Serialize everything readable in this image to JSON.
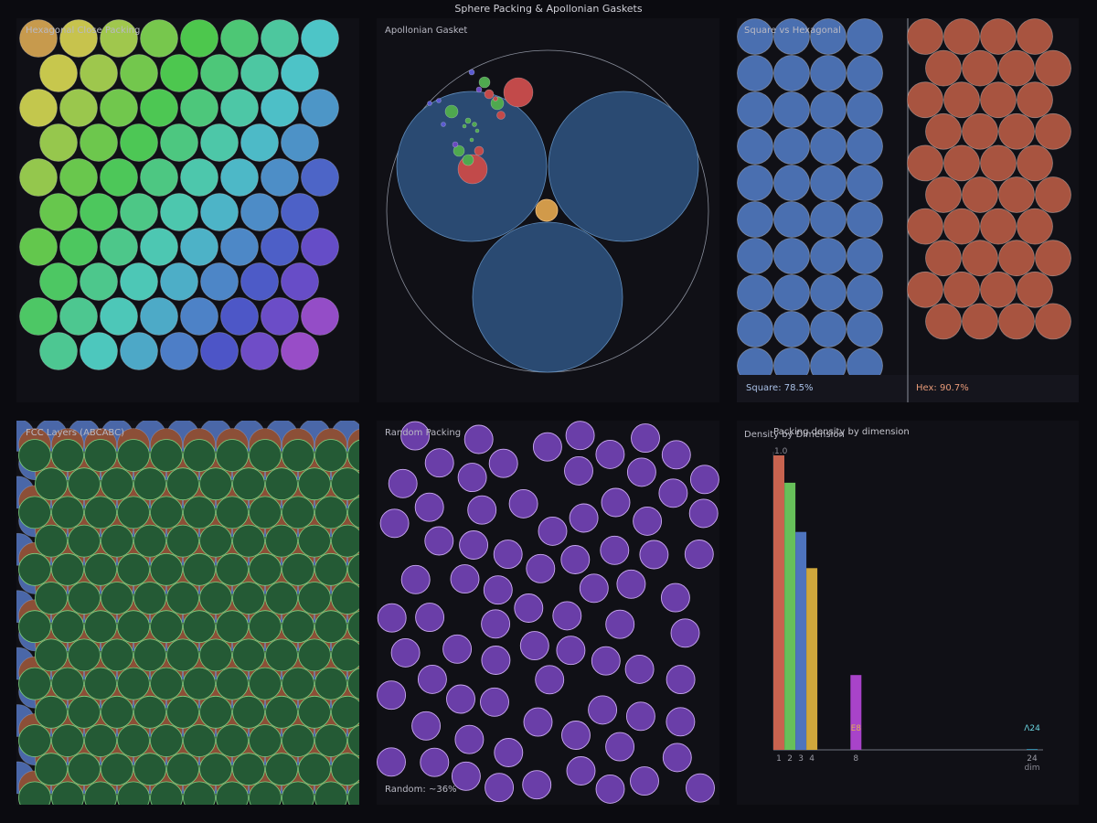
{
  "page": {
    "title": "Sphere Packing & Apollonian Gaskets"
  },
  "panels": {
    "hexagonal": {
      "label": "Hexagonal Close Packing"
    },
    "apollonian": {
      "label": "Apollonian Gasket"
    },
    "square_vs_hex": {
      "label": "Square vs Hexagonal",
      "square_label": "Square: 78.5%",
      "hex_label": "Hex: 90.7%",
      "square_color": "#4a6fb0",
      "hex_color": "#a85440"
    },
    "fcc": {
      "label": "FCC Layers (ABCABC)",
      "layer_colors": {
        "A": "#4a67a8",
        "B": "#8c4f37",
        "C": "#245a35"
      }
    },
    "random": {
      "label": "Random Packing",
      "footer": "Random: ~36%",
      "circle_color": "#6a3ea8"
    },
    "density": {
      "label": "Density by Dimension",
      "chart_title": "Packing density by dimension"
    }
  },
  "chart_data": {
    "type": "bar",
    "title": "Packing density by dimension",
    "xlabel": "dim",
    "ylabel": "",
    "y_tick_label": "1.0",
    "ylim": [
      0,
      1.0
    ],
    "xlim": [
      0.5,
      25
    ],
    "categories": [
      "1",
      "2",
      "3",
      "4",
      "8",
      "24"
    ],
    "x": [
      1,
      2,
      3,
      4,
      8,
      24
    ],
    "values": [
      1.0,
      0.907,
      0.74,
      0.617,
      0.254,
      0.0019
    ],
    "bar_colors": [
      "#c8634f",
      "#67c05a",
      "#4e74be",
      "#cfa73c",
      "#a843c9",
      "#3aa3c7"
    ],
    "annotations": [
      {
        "x": 8,
        "text": "E8",
        "color": "#e0b050"
      },
      {
        "x": 24,
        "text": "Λ24",
        "color": "#6bd4e0"
      }
    ]
  }
}
